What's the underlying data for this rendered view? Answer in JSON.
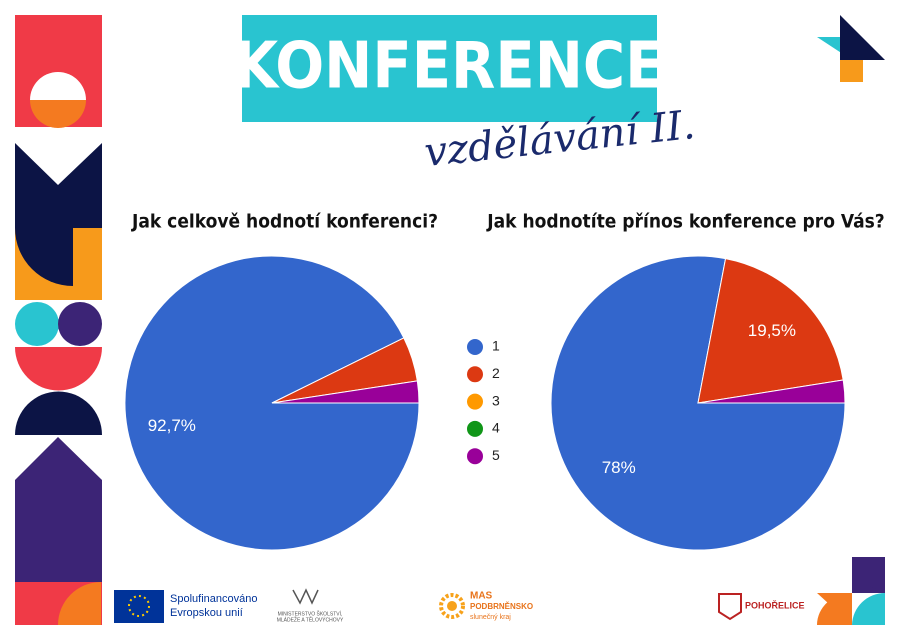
{
  "header": {
    "title": "KONFERENCE",
    "subtitle": "vzdělávání II."
  },
  "chart_data": [
    {
      "type": "pie",
      "title": "Jak celkově hodnotí konferenci?",
      "categories": [
        "1",
        "2",
        "3",
        "4",
        "5"
      ],
      "colors": [
        "#3366cc",
        "#dc3912",
        "#ff9900",
        "#109618",
        "#990099"
      ],
      "values": [
        92.7,
        4.9,
        0,
        0,
        2.4
      ],
      "value_labels": [
        "92,7%",
        null,
        null,
        null,
        null
      ]
    },
    {
      "type": "pie",
      "title": "Jak hodnotíte přínos konference pro Vás?",
      "values": [
        78,
        19.5,
        0,
        0,
        2.5
      ],
      "value_labels": [
        "78%",
        "19,5%",
        null,
        null,
        null
      ]
    }
  ],
  "footer": {
    "eu": [
      "Spolufinancováno",
      "Evropskou unií"
    ],
    "msmt": [
      "MINISTERSTVO ŠKOLSTVÍ,",
      "MLÁDEŽE A TĚLOVÝCHOVY"
    ],
    "mas": [
      "MAS",
      "PODBRNĚNSKO",
      "slunečný kraj"
    ],
    "town": "POHOŘELICE"
  }
}
